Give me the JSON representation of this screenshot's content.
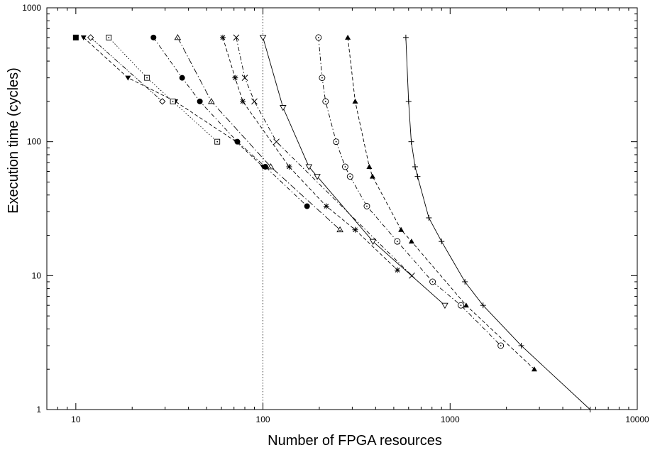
{
  "chart_data": {
    "type": "line",
    "title": "",
    "xlabel": "Number of FPGA resources",
    "ylabel": "Execution time (cycles)",
    "xscale": "log",
    "yscale": "log",
    "xlim": [
      7,
      10000
    ],
    "ylim": [
      1,
      1000
    ],
    "x_ticks": [
      10,
      100,
      1000,
      10000
    ],
    "x_tick_labels": [
      "10",
      "100",
      "1000",
      "10000"
    ],
    "y_ticks": [
      1,
      10,
      100,
      1000
    ],
    "y_tick_labels": [
      "1",
      "10",
      "100",
      "1000"
    ],
    "grid": false,
    "legend": "none",
    "reference_line": {
      "x": 100,
      "style": "dotted"
    },
    "series": [
      {
        "marker": "filled-square",
        "dash": "none",
        "points": [
          [
            10,
            600
          ]
        ]
      },
      {
        "marker": "filled-triangle-down",
        "dash": "dashed",
        "points": [
          [
            11,
            600
          ],
          [
            19,
            300
          ],
          [
            34,
            200
          ],
          [
            72,
            100
          ],
          [
            100,
            65
          ]
        ]
      },
      {
        "marker": "diamond",
        "dash": "dash-dot-dot",
        "points": [
          [
            12,
            600
          ],
          [
            29,
            200
          ]
        ]
      },
      {
        "marker": "boxed-dot",
        "dash": "dotted",
        "points": [
          [
            15,
            600
          ],
          [
            24,
            300
          ],
          [
            33,
            200
          ],
          [
            57,
            100
          ]
        ]
      },
      {
        "marker": "filled-circle",
        "dash": "dash-dot",
        "points": [
          [
            26,
            600
          ],
          [
            37,
            300
          ],
          [
            46,
            200
          ],
          [
            73,
            100
          ],
          [
            103,
            65
          ],
          [
            172,
            33
          ]
        ]
      },
      {
        "marker": "dotted-triangle-up",
        "dash": "long-dash-dot",
        "points": [
          [
            35,
            600
          ],
          [
            53,
            200
          ],
          [
            110,
            65
          ],
          [
            258,
            22
          ]
        ]
      },
      {
        "marker": "star",
        "dash": "dashed",
        "points": [
          [
            61,
            600
          ],
          [
            71,
            300
          ],
          [
            78,
            200
          ],
          [
            138,
            65
          ],
          [
            218,
            33
          ],
          [
            311,
            22
          ],
          [
            523,
            11
          ]
        ]
      },
      {
        "marker": "cross",
        "dash": "dash-dot",
        "points": [
          [
            72,
            600
          ],
          [
            80,
            300
          ],
          [
            90,
            200
          ],
          [
            118,
            100
          ],
          [
            625,
            10
          ]
        ]
      },
      {
        "marker": "triangle-down",
        "dash": "solid",
        "points": [
          [
            100,
            600
          ],
          [
            128,
            180
          ],
          [
            176,
            65
          ],
          [
            195,
            55
          ],
          [
            387,
            18
          ],
          [
            938,
            6
          ]
        ]
      },
      {
        "marker": "dotted-circle",
        "dash": "dash-dot",
        "points": [
          [
            198,
            600
          ],
          [
            207,
            300
          ],
          [
            216,
            200
          ],
          [
            246,
            100
          ],
          [
            275,
            65
          ],
          [
            292,
            55
          ],
          [
            359,
            33
          ],
          [
            522,
            18
          ],
          [
            806,
            9
          ],
          [
            1142,
            6
          ],
          [
            1865,
            3
          ]
        ]
      },
      {
        "marker": "filled-triangle-up",
        "dash": "dashed",
        "points": [
          [
            284,
            600
          ],
          [
            311,
            200
          ],
          [
            370,
            65
          ],
          [
            385,
            55
          ],
          [
            547,
            22
          ],
          [
            622,
            18
          ],
          [
            1218,
            6
          ],
          [
            2818,
            2
          ]
        ]
      },
      {
        "marker": "plus",
        "dash": "solid",
        "points": [
          [
            580,
            600
          ],
          [
            600,
            200
          ],
          [
            620,
            100
          ],
          [
            650,
            65
          ],
          [
            670,
            55
          ],
          [
            770,
            27
          ],
          [
            900,
            18
          ],
          [
            1200,
            9
          ],
          [
            1500,
            6
          ],
          [
            2400,
            3
          ],
          [
            5600,
            1
          ]
        ]
      }
    ]
  }
}
